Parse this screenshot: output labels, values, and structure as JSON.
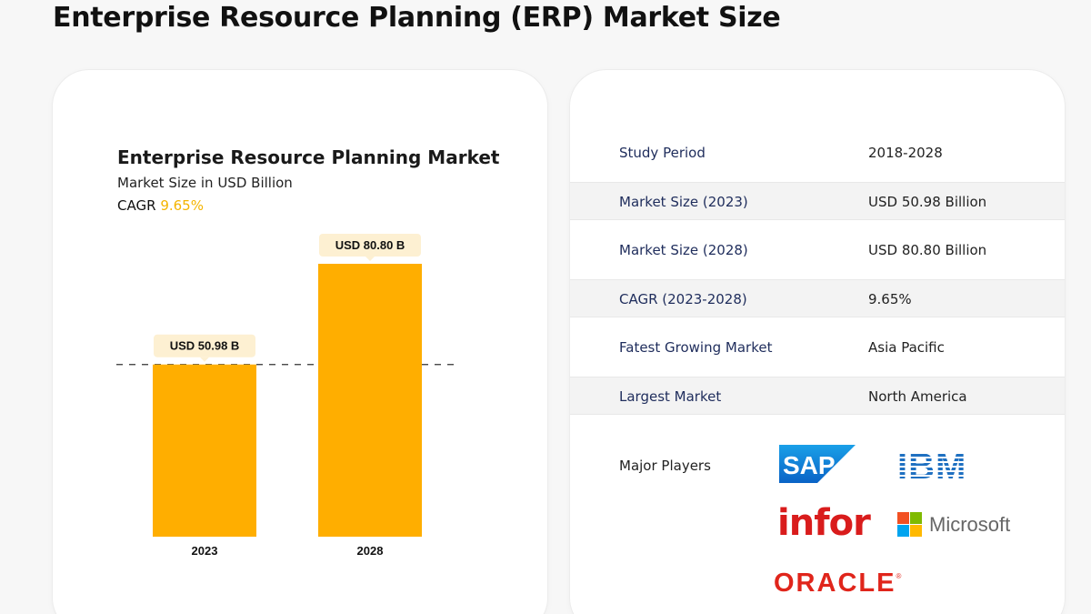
{
  "page": {
    "title": "Enterprise Resource Planning (ERP) Market Size"
  },
  "chart_data": {
    "type": "bar",
    "title": "Enterprise Resource Planning Market",
    "subtitle": "Market Size in USD Billion",
    "cagr_label": "CAGR",
    "cagr_value": "9.65%",
    "categories": [
      "2023",
      "2028"
    ],
    "values": [
      50.98,
      80.8
    ],
    "data_labels": [
      "USD 50.98 B",
      "USD 80.80 B"
    ],
    "ylim": [
      0,
      100
    ],
    "bar_color": "#ffae00",
    "reference_line": 50.98,
    "legend": "none",
    "grid": false
  },
  "summary_table": {
    "rows": [
      {
        "label": "Study Period",
        "value": "2018-2028"
      },
      {
        "label": "Market Size (2023)",
        "value": "USD 50.98 Billion"
      },
      {
        "label": "Market Size (2028)",
        "value": "USD 80.80 Billion"
      },
      {
        "label": "CAGR (2023-2028)",
        "value": "9.65%"
      },
      {
        "label": "Fatest Growing Market",
        "value": "Asia Pacific"
      },
      {
        "label": "Largest Market",
        "value": "North America"
      }
    ],
    "players_label": "Major Players",
    "players": {
      "sap": "SAP",
      "ibm": "IBM",
      "infor": "infor",
      "microsoft": "Microsoft",
      "oracle": "ORACLE"
    }
  },
  "colors": {
    "accent": "#ffae00",
    "cagr": "#f4b400",
    "label_navy": "#1f2d5c",
    "sap_blue": "#0a7fd6",
    "ibm_blue": "#1f70c1",
    "infor_red": "#d91c1c",
    "oracle_red": "#e0251b"
  }
}
